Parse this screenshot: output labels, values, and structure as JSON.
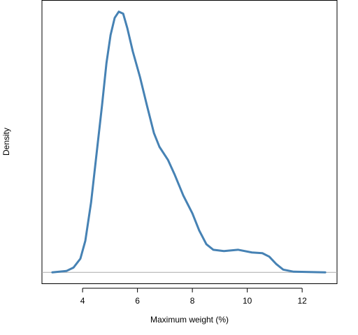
{
  "chart_data": {
    "type": "line",
    "x_label": "Maximum weight (%)",
    "y_label": "Density",
    "x": [
      2.9,
      3.41,
      3.67,
      3.92,
      4.1,
      4.31,
      4.51,
      4.71,
      4.87,
      5.02,
      5.17,
      5.32,
      5.48,
      5.63,
      5.83,
      6.09,
      6.34,
      6.6,
      6.8,
      7.11,
      7.36,
      7.67,
      8.0,
      8.25,
      8.51,
      8.76,
      9.15,
      9.66,
      10.17,
      10.55,
      10.8,
      11.06,
      11.31,
      11.69,
      12.84
    ],
    "series": [
      {
        "color": "#4682b4",
        "values": [
          0,
          0.002,
          0.007,
          0.02,
          0.046,
          0.102,
          0.173,
          0.244,
          0.305,
          0.346,
          0.371,
          0.38,
          0.377,
          0.356,
          0.322,
          0.285,
          0.244,
          0.203,
          0.183,
          0.164,
          0.142,
          0.112,
          0.086,
          0.061,
          0.041,
          0.033,
          0.031,
          0.033,
          0.029,
          0.028,
          0.023,
          0.012,
          0.004,
          0.001,
          0
        ]
      }
    ],
    "xlim": [
      2.52,
      13.27
    ],
    "ylim": [
      -0.016,
      0.397
    ],
    "xticks": [
      4,
      6,
      8,
      10,
      12
    ]
  }
}
